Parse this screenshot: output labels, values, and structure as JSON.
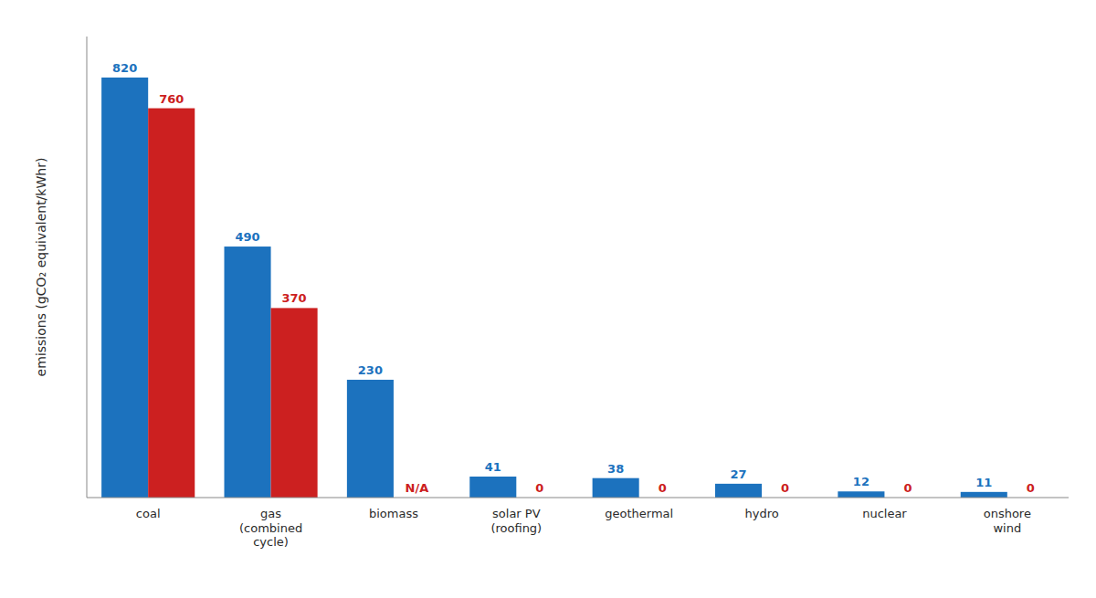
{
  "chart_data": {
    "type": "bar",
    "y_label": "emissions (gCO₂ equivalent/kWhr)",
    "categories": [
      "coal",
      "gas\n(combined\ncycle)",
      "biomass",
      "solar PV\n(roofing)",
      "geothermal",
      "hydro",
      "nuclear",
      "onshore\nwind"
    ],
    "series": [
      {
        "color": "#1c72be",
        "values": [
          820,
          490,
          230,
          41,
          38,
          27,
          12,
          11
        ]
      },
      {
        "color": "#cc2020",
        "values": [
          760,
          370,
          null,
          0,
          0,
          0,
          0,
          0
        ],
        "value_labels": [
          "760",
          "370",
          "N/A",
          "0",
          "0",
          "0",
          "0",
          "0"
        ]
      }
    ],
    "ylim": [
      0,
      900
    ],
    "yticks": [],
    "grid": false,
    "data_labels": true,
    "tick_labels": "x"
  }
}
